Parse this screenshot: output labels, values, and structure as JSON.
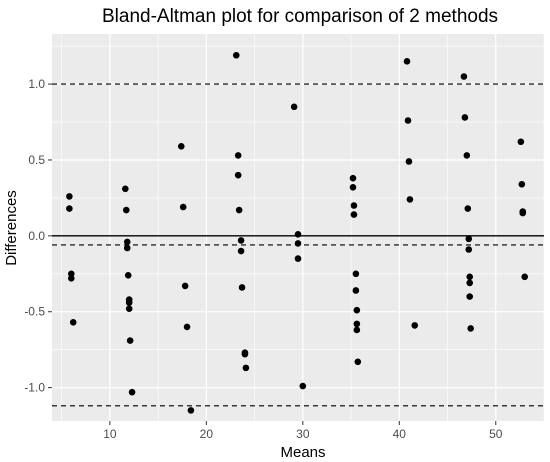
{
  "chart_data": {
    "type": "scatter",
    "title": "Bland-Altman plot for comparison of 2 methods",
    "xlabel": "Means",
    "ylabel": "Differences",
    "xlim": [
      4.0,
      55.0
    ],
    "ylim": [
      -1.22,
      1.33
    ],
    "x_ticks": [
      10,
      20,
      30,
      40,
      50
    ],
    "y_ticks": [
      -1.0,
      -0.5,
      0.0,
      0.5,
      1.0
    ],
    "x_tick_labels": [
      "10",
      "20",
      "30",
      "40",
      "50"
    ],
    "y_tick_labels": [
      "-1.0",
      "-0.5",
      "0.0",
      "0.5",
      "1.0"
    ],
    "grid": true,
    "reference_lines": [
      {
        "y": 0.0,
        "style": "solid"
      },
      {
        "y": -0.06,
        "style": "dashed"
      },
      {
        "y": 1.0,
        "style": "dashed"
      },
      {
        "y": -1.12,
        "style": "dashed"
      }
    ],
    "points": [
      {
        "x": 5.8,
        "y": 0.26
      },
      {
        "x": 5.8,
        "y": 0.18
      },
      {
        "x": 6.0,
        "y": -0.25
      },
      {
        "x": 6.0,
        "y": -0.28
      },
      {
        "x": 6.2,
        "y": -0.57
      },
      {
        "x": 11.6,
        "y": 0.31
      },
      {
        "x": 11.7,
        "y": 0.17
      },
      {
        "x": 11.8,
        "y": -0.04
      },
      {
        "x": 11.8,
        "y": -0.08
      },
      {
        "x": 11.9,
        "y": -0.26
      },
      {
        "x": 12.0,
        "y": -0.42
      },
      {
        "x": 12.0,
        "y": -0.44
      },
      {
        "x": 12.0,
        "y": -0.48
      },
      {
        "x": 12.1,
        "y": -0.69
      },
      {
        "x": 12.3,
        "y": -1.03
      },
      {
        "x": 17.4,
        "y": 0.59
      },
      {
        "x": 17.6,
        "y": 0.19
      },
      {
        "x": 17.8,
        "y": -0.33
      },
      {
        "x": 18.0,
        "y": -0.6
      },
      {
        "x": 18.4,
        "y": -1.15
      },
      {
        "x": 23.1,
        "y": 1.19
      },
      {
        "x": 23.3,
        "y": 0.53
      },
      {
        "x": 23.3,
        "y": 0.4
      },
      {
        "x": 23.4,
        "y": 0.17
      },
      {
        "x": 23.6,
        "y": -0.03
      },
      {
        "x": 23.6,
        "y": -0.1
      },
      {
        "x": 23.7,
        "y": -0.34
      },
      {
        "x": 24.0,
        "y": -0.77
      },
      {
        "x": 24.0,
        "y": -0.78
      },
      {
        "x": 24.1,
        "y": -0.87
      },
      {
        "x": 29.1,
        "y": 0.85
      },
      {
        "x": 29.5,
        "y": 0.01
      },
      {
        "x": 29.5,
        "y": -0.05
      },
      {
        "x": 29.5,
        "y": -0.15
      },
      {
        "x": 30.0,
        "y": -0.99
      },
      {
        "x": 35.2,
        "y": 0.38
      },
      {
        "x": 35.2,
        "y": 0.32
      },
      {
        "x": 35.3,
        "y": 0.2
      },
      {
        "x": 35.3,
        "y": 0.14
      },
      {
        "x": 35.5,
        "y": -0.25
      },
      {
        "x": 35.5,
        "y": -0.36
      },
      {
        "x": 35.6,
        "y": -0.49
      },
      {
        "x": 35.6,
        "y": -0.58
      },
      {
        "x": 35.6,
        "y": -0.62
      },
      {
        "x": 35.7,
        "y": -0.83
      },
      {
        "x": 40.8,
        "y": 1.15
      },
      {
        "x": 40.9,
        "y": 0.76
      },
      {
        "x": 41.0,
        "y": 0.49
      },
      {
        "x": 41.1,
        "y": 0.24
      },
      {
        "x": 41.6,
        "y": -0.59
      },
      {
        "x": 46.7,
        "y": 1.05
      },
      {
        "x": 46.8,
        "y": 0.78
      },
      {
        "x": 47.0,
        "y": 0.53
      },
      {
        "x": 47.1,
        "y": 0.18
      },
      {
        "x": 47.2,
        "y": -0.02
      },
      {
        "x": 47.2,
        "y": -0.09
      },
      {
        "x": 47.3,
        "y": -0.27
      },
      {
        "x": 47.3,
        "y": -0.31
      },
      {
        "x": 47.3,
        "y": -0.4
      },
      {
        "x": 47.4,
        "y": -0.61
      },
      {
        "x": 52.6,
        "y": 0.62
      },
      {
        "x": 52.7,
        "y": 0.34
      },
      {
        "x": 52.8,
        "y": 0.16
      },
      {
        "x": 52.8,
        "y": 0.15
      },
      {
        "x": 53.0,
        "y": -0.27
      }
    ]
  }
}
